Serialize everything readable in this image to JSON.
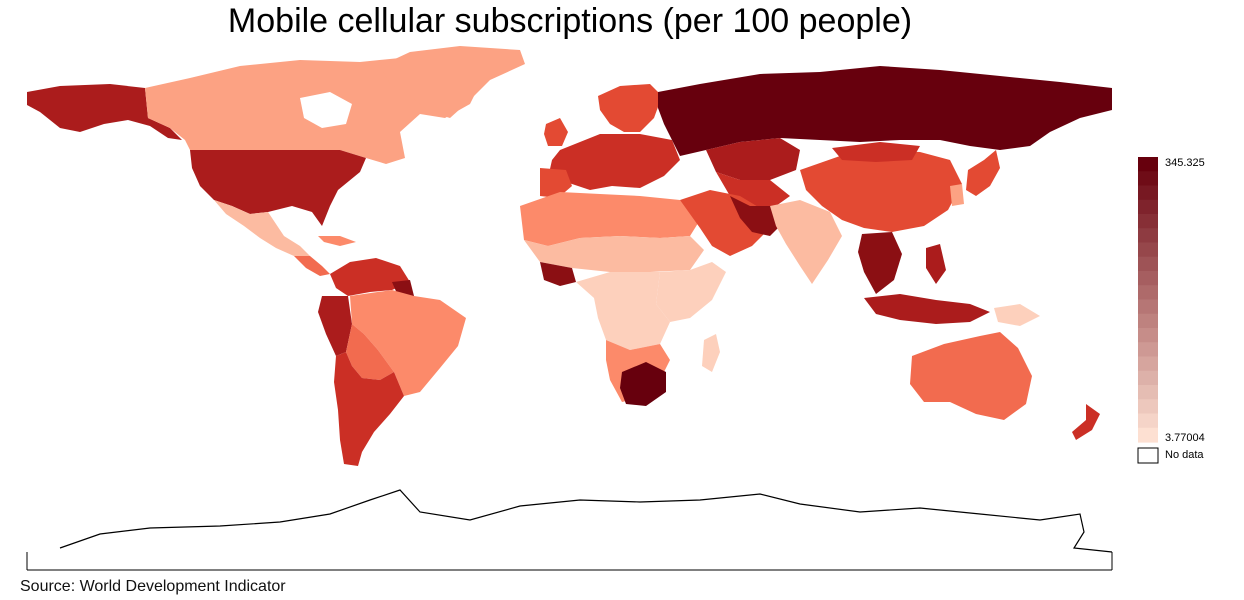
{
  "map": {
    "title": "Mobile cellular subscriptions (per 100 people)",
    "source": "Source: World Development Indicator",
    "legend": {
      "max_label": "345.325",
      "min_label": "3.77004",
      "no_data_label": "No data",
      "steps": 20,
      "color_low": "#fde0d2",
      "color_high": "#67000d"
    },
    "colors": {
      "ramp": [
        "#fee5d9",
        "#fdd0bc",
        "#fcbba1",
        "#fca283",
        "#fc8a6a",
        "#f26b4f",
        "#e34a33",
        "#cb2f25",
        "#ab1c1c",
        "#8b0f13",
        "#67000d"
      ],
      "nodata_fill": "#ffffff",
      "outline": "#000000"
    }
  }
}
